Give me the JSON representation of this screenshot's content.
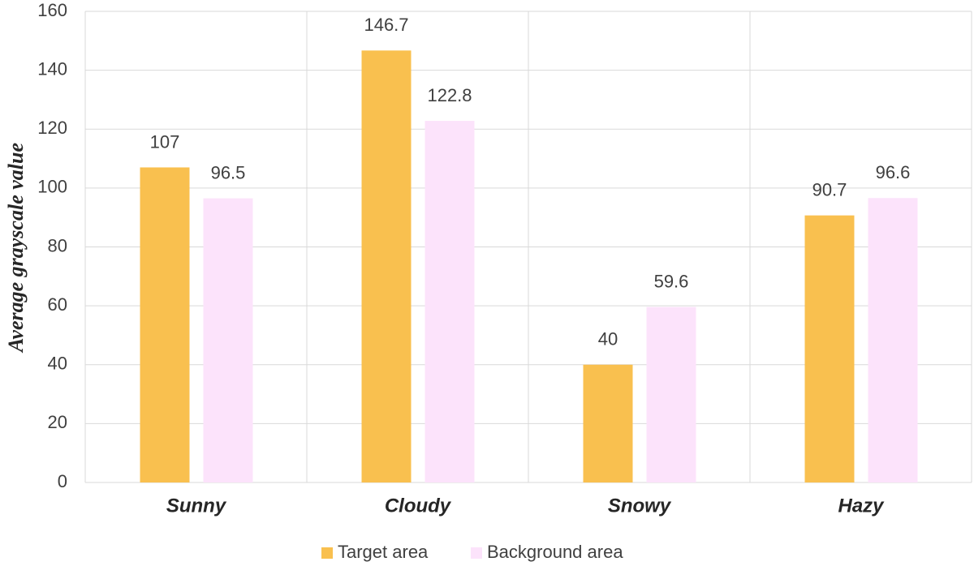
{
  "chart_data": {
    "type": "bar",
    "y_label": "Average grayscale value",
    "categories": [
      "Sunny",
      "Cloudy",
      "Snowy",
      "Hazy"
    ],
    "series": [
      {
        "name": "Target area",
        "color": "#f9c04f",
        "values": [
          107,
          146.7,
          40,
          90.7
        ]
      },
      {
        "name": "Background area",
        "color": "#fce3fb",
        "values": [
          96.5,
          122.8,
          59.6,
          96.6
        ]
      }
    ],
    "ylim": [
      0,
      160
    ],
    "yticks": [
      0,
      20,
      40,
      60,
      80,
      100,
      120,
      140,
      160
    ],
    "grid": true,
    "legend": "bottom"
  }
}
